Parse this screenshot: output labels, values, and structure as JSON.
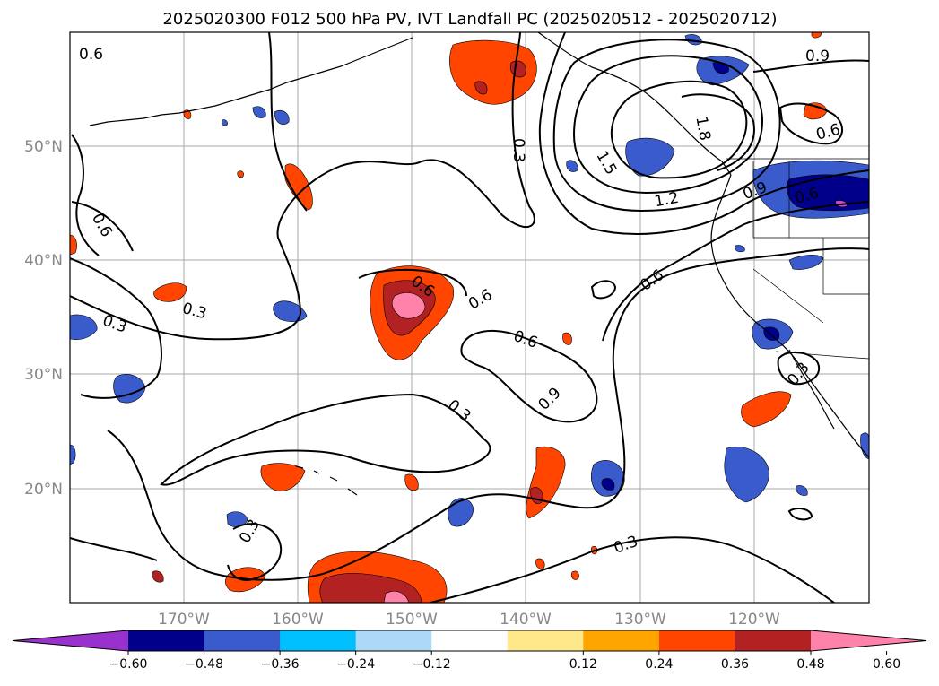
{
  "title": "2025020300 F012 500 hPa PV, IVT Landfall PC (2025020512 - 2025020712)",
  "map": {
    "lat_labels": [
      "50°N",
      "40°N",
      "30°N",
      "20°N"
    ],
    "lon_labels": [
      "170°W",
      "160°W",
      "150°W",
      "140°W",
      "130°W",
      "120°W"
    ],
    "projection": "regional lat-lon, North Pacific",
    "extent": {
      "lon": [
        -180,
        -110
      ],
      "lat": [
        10,
        60
      ]
    },
    "gridlines": true,
    "land_color": "#ffffff",
    "coastline_color": "#000000"
  },
  "pv_contours": {
    "units_implicit": true,
    "labels": [
      "0.6",
      "0.3",
      "0.6",
      "0.3",
      "0.3",
      "0.6",
      "0.6",
      "0.6",
      "0.9",
      "0.3",
      "0.3",
      "0.3",
      "0.3",
      "1.5",
      "1.8",
      "1.2",
      "0.9",
      "0.6",
      "0.6",
      "0.9",
      "0.6",
      "0.3"
    ]
  },
  "colorbar": {
    "ticks": [
      "−0.60",
      "−0.48",
      "−0.36",
      "−0.24",
      "−0.12",
      "0.12",
      "0.24",
      "0.36",
      "0.48",
      "0.60"
    ],
    "colors": [
      "#9932cc",
      "#00008b",
      "#3a5bcc",
      "#00bfff",
      "#add8f8",
      "#ffffff",
      "#ffe88a",
      "#ffa500",
      "#ff4500",
      "#b22222",
      "#ff82ab"
    ],
    "extend": "both"
  }
}
